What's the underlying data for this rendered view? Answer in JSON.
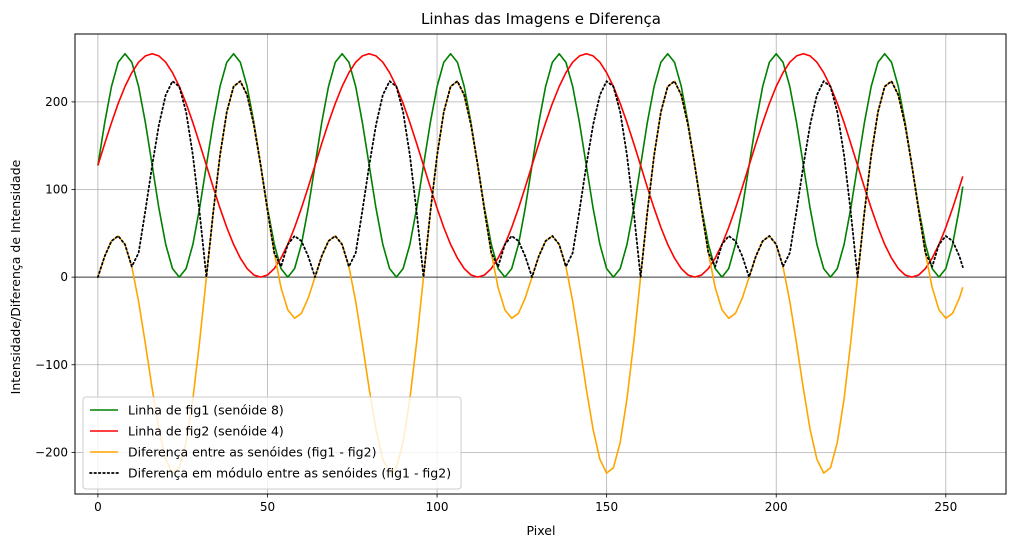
{
  "chart_data": {
    "type": "line",
    "title": "Linhas das Imagens e Diferença",
    "xlabel": "Pixel",
    "ylabel": "Intensidade/Diferença de Intensidade",
    "xlim": [
      -6.75,
      267.75
    ],
    "ylim": [
      -247.5,
      277.5
    ],
    "xticks": [
      0,
      50,
      100,
      150,
      200,
      250
    ],
    "yticks": [
      -200,
      -100,
      0,
      100,
      200
    ],
    "grid": true,
    "hline_at_zero": true,
    "legend_position": "lower-left",
    "x": [
      0,
      2,
      4,
      6,
      8,
      10,
      12,
      14,
      16,
      18,
      20,
      22,
      24,
      26,
      28,
      30,
      32,
      34,
      36,
      38,
      40,
      42,
      44,
      46,
      48,
      50,
      52,
      54,
      56,
      58,
      60,
      62,
      64,
      66,
      68,
      70,
      72,
      74,
      76,
      78,
      80,
      82,
      84,
      86,
      88,
      90,
      92,
      94,
      96,
      98,
      100,
      102,
      104,
      106,
      108,
      110,
      112,
      114,
      116,
      118,
      120,
      122,
      124,
      126,
      128,
      130,
      132,
      134,
      136,
      138,
      140,
      142,
      144,
      146,
      148,
      150,
      152,
      154,
      156,
      158,
      160,
      162,
      164,
      166,
      168,
      170,
      172,
      174,
      176,
      178,
      180,
      182,
      184,
      186,
      188,
      190,
      192,
      194,
      196,
      198,
      200,
      202,
      204,
      206,
      208,
      210,
      212,
      214,
      216,
      218,
      220,
      222,
      224,
      226,
      228,
      230,
      232,
      234,
      236,
      238,
      240,
      242,
      244,
      246,
      248,
      250,
      252,
      254,
      255
    ],
    "series": [
      {
        "name": "Linha de fig1 (senóide 8)",
        "color": "#008000",
        "style": "solid",
        "values": [
          127.5,
          176.3,
          217.6,
          245.3,
          255.0,
          245.3,
          217.6,
          176.3,
          127.5,
          78.7,
          37.4,
          9.7,
          0.0,
          9.7,
          37.4,
          78.7,
          127.5,
          176.3,
          217.6,
          245.3,
          255.0,
          245.3,
          217.6,
          176.3,
          127.5,
          78.7,
          37.4,
          9.7,
          0.0,
          9.7,
          37.4,
          78.7,
          127.5,
          176.3,
          217.6,
          245.3,
          255.0,
          245.3,
          217.6,
          176.3,
          127.5,
          78.7,
          37.4,
          9.7,
          0.0,
          9.7,
          37.4,
          78.7,
          127.5,
          176.3,
          217.6,
          245.3,
          255.0,
          245.3,
          217.6,
          176.3,
          127.5,
          78.7,
          37.4,
          9.7,
          0.0,
          9.7,
          37.4,
          78.7,
          127.5,
          176.3,
          217.6,
          245.3,
          255.0,
          245.3,
          217.6,
          176.3,
          127.5,
          78.7,
          37.4,
          9.7,
          0.0,
          9.7,
          37.4,
          78.7,
          127.5,
          176.3,
          217.6,
          245.3,
          255.0,
          245.3,
          217.6,
          176.3,
          127.5,
          78.7,
          37.4,
          9.7,
          0.0,
          9.7,
          37.4,
          78.7,
          127.5,
          176.3,
          217.6,
          245.3,
          255.0,
          245.3,
          217.6,
          176.3,
          127.5,
          78.7,
          37.4,
          9.7,
          0.0,
          9.7,
          37.4,
          78.7,
          127.5,
          176.3,
          217.6,
          245.3,
          255.0,
          245.3,
          217.6,
          176.3,
          127.5,
          78.7,
          37.4,
          9.7,
          0.0,
          9.7,
          37.4,
          78.7,
          103.5
        ]
      },
      {
        "name": "Linha de fig2 (senóide 4)",
        "color": "#ff0000",
        "style": "solid",
        "values": [
          127.5,
          152.4,
          176.3,
          198.3,
          217.6,
          233.3,
          245.3,
          252.5,
          255.0,
          252.5,
          245.3,
          233.3,
          217.6,
          198.3,
          176.3,
          152.4,
          127.5,
          102.6,
          78.7,
          56.7,
          37.4,
          21.7,
          9.7,
          2.5,
          0.0,
          2.5,
          9.7,
          21.7,
          37.4,
          56.7,
          78.7,
          102.6,
          127.5,
          152.4,
          176.3,
          198.3,
          217.6,
          233.3,
          245.3,
          252.5,
          255.0,
          252.5,
          245.3,
          233.3,
          217.6,
          198.3,
          176.3,
          152.4,
          127.5,
          102.6,
          78.7,
          56.7,
          37.4,
          21.7,
          9.7,
          2.5,
          0.0,
          2.5,
          9.7,
          21.7,
          37.4,
          56.7,
          78.7,
          102.6,
          127.5,
          152.4,
          176.3,
          198.3,
          217.6,
          233.3,
          245.3,
          252.5,
          255.0,
          252.5,
          245.3,
          233.3,
          217.6,
          198.3,
          176.3,
          152.4,
          127.5,
          102.6,
          78.7,
          56.7,
          37.4,
          21.7,
          9.7,
          2.5,
          0.0,
          2.5,
          9.7,
          21.7,
          37.4,
          56.7,
          78.7,
          102.6,
          127.5,
          152.4,
          176.3,
          198.3,
          217.6,
          233.3,
          245.3,
          252.5,
          255.0,
          252.5,
          245.3,
          233.3,
          217.6,
          198.3,
          176.3,
          152.4,
          127.5,
          102.6,
          78.7,
          56.7,
          37.4,
          21.7,
          9.7,
          2.5,
          0.0,
          2.5,
          9.7,
          21.7,
          37.4,
          56.7,
          78.7,
          102.6,
          115.0
        ]
      },
      {
        "name": "Diferença entre as senóides (fig1 - fig2)",
        "color": "#ffa500",
        "style": "solid",
        "values": [
          0.0,
          23.9,
          41.3,
          47.0,
          37.4,
          12.0,
          -27.7,
          -76.2,
          -127.5,
          -173.8,
          -207.9,
          -223.6,
          -217.6,
          -188.6,
          -138.9,
          -73.7,
          0.0,
          73.7,
          138.9,
          188.6,
          217.6,
          223.6,
          207.9,
          173.8,
          127.5,
          76.2,
          27.7,
          -12.0,
          -37.4,
          -47.0,
          -41.3,
          -23.9,
          0.0,
          23.9,
          41.3,
          47.0,
          37.4,
          12.0,
          -27.7,
          -76.2,
          -127.5,
          -173.8,
          -207.9,
          -223.6,
          -217.6,
          -188.6,
          -138.9,
          -73.7,
          0.0,
          73.7,
          138.9,
          188.6,
          217.6,
          223.6,
          207.9,
          173.8,
          127.5,
          76.2,
          27.7,
          -12.0,
          -37.4,
          -47.0,
          -41.3,
          -23.9,
          0.0,
          23.9,
          41.3,
          47.0,
          37.4,
          12.0,
          -27.7,
          -76.2,
          -127.5,
          -173.8,
          -207.9,
          -223.6,
          -217.6,
          -188.6,
          -138.9,
          -73.7,
          0.0,
          73.7,
          138.9,
          188.6,
          217.6,
          223.6,
          207.9,
          173.8,
          127.5,
          76.2,
          27.7,
          -12.0,
          -37.4,
          -47.0,
          -41.3,
          -23.9,
          0.0,
          23.9,
          41.3,
          47.0,
          37.4,
          12.0,
          -27.7,
          -76.2,
          -127.5,
          -173.8,
          -207.9,
          -223.6,
          -217.6,
          -188.6,
          -138.9,
          -73.7,
          0.0,
          73.7,
          138.9,
          188.6,
          217.6,
          223.6,
          207.9,
          173.8,
          127.5,
          76.2,
          27.7,
          -12.0,
          -37.4,
          -47.0,
          -41.3,
          -23.9,
          -11.5
        ]
      },
      {
        "name": "Diferença em módulo entre as senóides (fig1 - fig2)",
        "color": "#000000",
        "style": "dotted",
        "values": [
          0.0,
          23.9,
          41.3,
          47.0,
          37.4,
          12.0,
          27.7,
          76.2,
          127.5,
          173.8,
          207.9,
          223.6,
          217.6,
          188.6,
          138.9,
          73.7,
          0.0,
          73.7,
          138.9,
          188.6,
          217.6,
          223.6,
          207.9,
          173.8,
          127.5,
          76.2,
          27.7,
          12.0,
          37.4,
          47.0,
          41.3,
          23.9,
          0.0,
          23.9,
          41.3,
          47.0,
          37.4,
          12.0,
          27.7,
          76.2,
          127.5,
          173.8,
          207.9,
          223.6,
          217.6,
          188.6,
          138.9,
          73.7,
          0.0,
          73.7,
          138.9,
          188.6,
          217.6,
          223.6,
          207.9,
          173.8,
          127.5,
          76.2,
          27.7,
          12.0,
          37.4,
          47.0,
          41.3,
          23.9,
          0.0,
          23.9,
          41.3,
          47.0,
          37.4,
          12.0,
          27.7,
          76.2,
          127.5,
          173.8,
          207.9,
          223.6,
          217.6,
          188.6,
          138.9,
          73.7,
          0.0,
          73.7,
          138.9,
          188.6,
          217.6,
          223.6,
          207.9,
          173.8,
          127.5,
          76.2,
          27.7,
          12.0,
          37.4,
          47.0,
          41.3,
          23.9,
          0.0,
          23.9,
          41.3,
          47.0,
          37.4,
          12.0,
          27.7,
          76.2,
          127.5,
          173.8,
          207.9,
          223.6,
          217.6,
          188.6,
          138.9,
          73.7,
          0.0,
          73.7,
          138.9,
          188.6,
          217.6,
          223.6,
          207.9,
          173.8,
          127.5,
          76.2,
          27.7,
          12.0,
          37.4,
          47.0,
          41.3,
          23.9,
          11.5
        ]
      }
    ]
  }
}
